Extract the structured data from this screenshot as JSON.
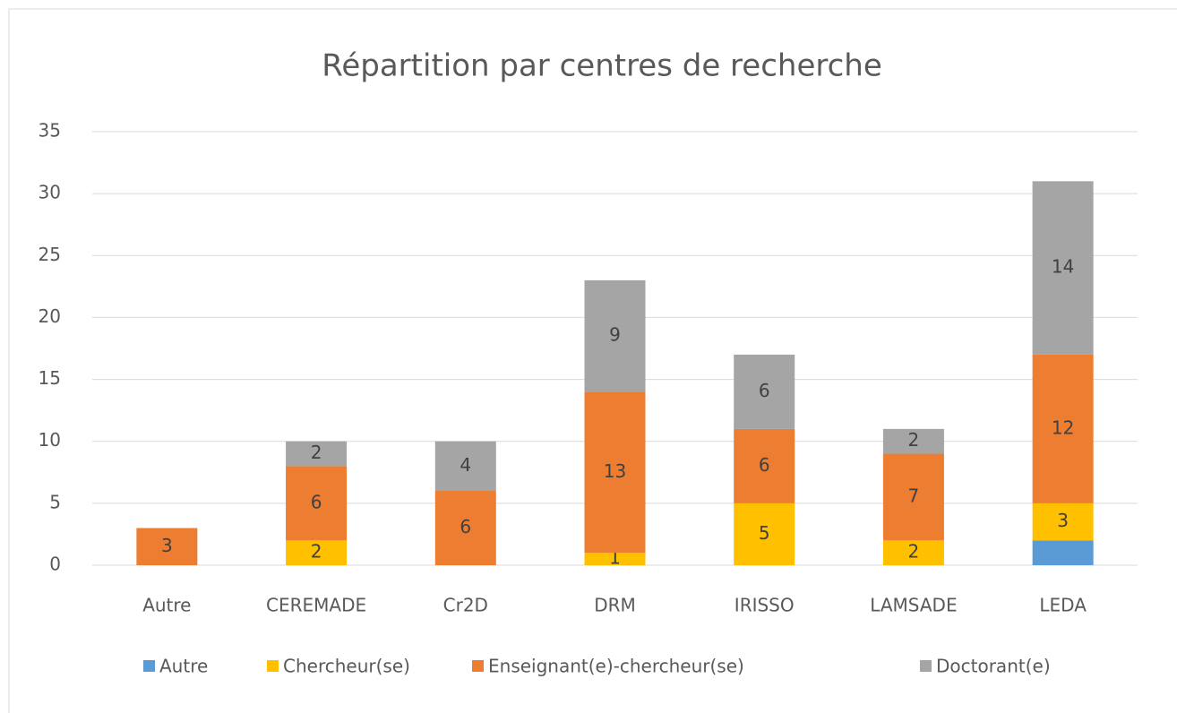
{
  "chart_data": {
    "type": "stacked_bar",
    "title": "Répartition par centres de recherche",
    "categories": [
      "Autre",
      "CEREMADE",
      "Cr2D",
      "DRM",
      "IRISSO",
      "LAMSADE",
      "LEDA"
    ],
    "series": [
      {
        "name": "Autre",
        "color": "#5b9bd5",
        "values": [
          0,
          0,
          0,
          0,
          0,
          0,
          2
        ],
        "show_labels": false
      },
      {
        "name": "Chercheur(se)",
        "color": "#ffc000",
        "values": [
          0,
          2,
          0,
          1,
          5,
          2,
          3
        ],
        "show_labels": true
      },
      {
        "name": "Enseignant(e)-chercheur(se)",
        "color": "#ed7d31",
        "values": [
          3,
          6,
          6,
          13,
          6,
          7,
          12
        ],
        "show_labels": true
      },
      {
        "name": "Doctorant(e)",
        "color": "#a5a5a5",
        "values": [
          0,
          2,
          4,
          9,
          6,
          2,
          14
        ],
        "show_labels": true
      }
    ],
    "ylim": [
      0,
      35
    ],
    "yticks": [
      0,
      5,
      10,
      15,
      20,
      25,
      30,
      35
    ],
    "grid": true,
    "legend": "bottom"
  }
}
